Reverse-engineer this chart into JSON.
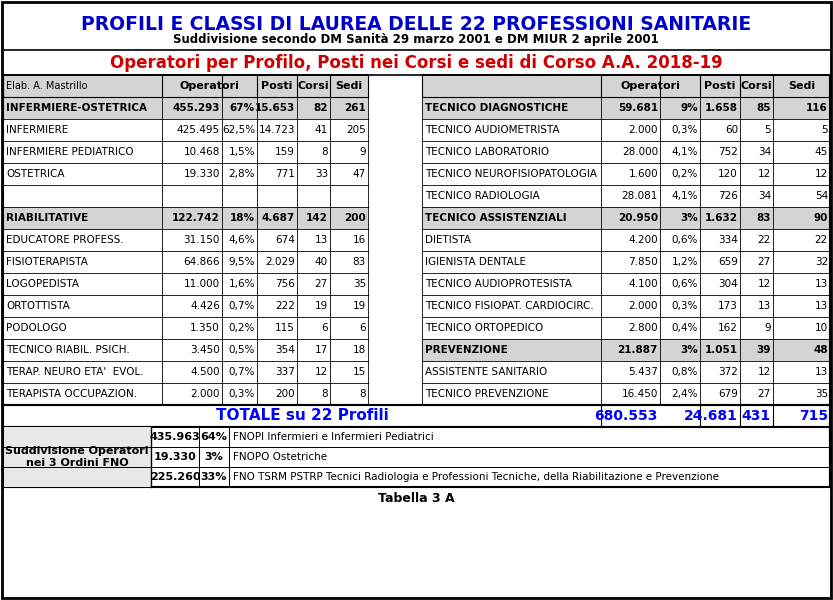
{
  "title1": "PROFILI E CLASSI DI LAUREA DELLE 22 PROFESSIONI SANITARIE",
  "title2": "Suddivisione secondo DM Sanità 29 marzo 2001 e DM MIUR 2 aprile 2001",
  "title3": "Operatori per Profilo, Posti nei Corsi e sedi di Corso A.A. 2018-19",
  "elab": "Elab. A. Mastrillo",
  "left_sections": [
    {
      "name": "INFERMIERE-OSTETRICA",
      "bold": true,
      "operatori": "455.293",
      "pct": "67%",
      "posti": "15.653",
      "corsi": "82",
      "sedi": "261"
    },
    {
      "name": "INFERMIERE",
      "bold": false,
      "operatori": "425.495",
      "pct": "62,5%",
      "posti": "14.723",
      "corsi": "41",
      "sedi": "205"
    },
    {
      "name": "INFERMIERE PEDIATRICO",
      "bold": false,
      "operatori": "10.468",
      "pct": "1,5%",
      "posti": "159",
      "corsi": "8",
      "sedi": "9"
    },
    {
      "name": "OSTETRICA",
      "bold": false,
      "operatori": "19.330",
      "pct": "2,8%",
      "posti": "771",
      "corsi": "33",
      "sedi": "47"
    },
    {
      "name": "",
      "bold": false,
      "operatori": "",
      "pct": "",
      "posti": "",
      "corsi": "",
      "sedi": ""
    },
    {
      "name": "RIABILITATIVE",
      "bold": true,
      "operatori": "122.742",
      "pct": "18%",
      "posti": "4.687",
      "corsi": "142",
      "sedi": "200"
    },
    {
      "name": "EDUCATORE PROFESS.",
      "bold": false,
      "operatori": "31.150",
      "pct": "4,6%",
      "posti": "674",
      "corsi": "13",
      "sedi": "16"
    },
    {
      "name": "FISIOTERAPISTA",
      "bold": false,
      "operatori": "64.866",
      "pct": "9,5%",
      "posti": "2.029",
      "corsi": "40",
      "sedi": "83"
    },
    {
      "name": "LOGOPEDISTA",
      "bold": false,
      "operatori": "11.000",
      "pct": "1,6%",
      "posti": "756",
      "corsi": "27",
      "sedi": "35"
    },
    {
      "name": "ORTOTTISTA",
      "bold": false,
      "operatori": "4.426",
      "pct": "0,7%",
      "posti": "222",
      "corsi": "19",
      "sedi": "19"
    },
    {
      "name": "PODOLOGO",
      "bold": false,
      "operatori": "1.350",
      "pct": "0,2%",
      "posti": "115",
      "corsi": "6",
      "sedi": "6"
    },
    {
      "name": "TECNICO RIABIL. PSICH.",
      "bold": false,
      "operatori": "3.450",
      "pct": "0,5%",
      "posti": "354",
      "corsi": "17",
      "sedi": "18"
    },
    {
      "name": "TERAP. NEURO ETA'  EVOL.",
      "bold": false,
      "operatori": "4.500",
      "pct": "0,7%",
      "posti": "337",
      "corsi": "12",
      "sedi": "15"
    },
    {
      "name": "TERAPISTA OCCUPAZION.",
      "bold": false,
      "operatori": "2.000",
      "pct": "0,3%",
      "posti": "200",
      "corsi": "8",
      "sedi": "8"
    }
  ],
  "right_sections": [
    {
      "name": "TECNICO DIAGNOSTICHE",
      "bold": true,
      "operatori": "59.681",
      "pct": "9%",
      "posti": "1.658",
      "corsi": "85",
      "sedi": "116"
    },
    {
      "name": "TECNICO AUDIOMETRISTA",
      "bold": false,
      "operatori": "2.000",
      "pct": "0,3%",
      "posti": "60",
      "corsi": "5",
      "sedi": "5"
    },
    {
      "name": "TECNICO LABORATORIO",
      "bold": false,
      "operatori": "28.000",
      "pct": "4,1%",
      "posti": "752",
      "corsi": "34",
      "sedi": "45"
    },
    {
      "name": "TECNICO NEUROFISIOPATOLOGIA",
      "bold": false,
      "operatori": "1.600",
      "pct": "0,2%",
      "posti": "120",
      "corsi": "12",
      "sedi": "12"
    },
    {
      "name": "TECNICO RADIOLOGIA",
      "bold": false,
      "operatori": "28.081",
      "pct": "4,1%",
      "posti": "726",
      "corsi": "34",
      "sedi": "54"
    },
    {
      "name": "TECNICO ASSISTENZIALI",
      "bold": true,
      "operatori": "20.950",
      "pct": "3%",
      "posti": "1.632",
      "corsi": "83",
      "sedi": "90"
    },
    {
      "name": "DIETISTA",
      "bold": false,
      "operatori": "4.200",
      "pct": "0,6%",
      "posti": "334",
      "corsi": "22",
      "sedi": "22"
    },
    {
      "name": "IGIENISTA DENTALE",
      "bold": false,
      "operatori": "7.850",
      "pct": "1,2%",
      "posti": "659",
      "corsi": "27",
      "sedi": "32"
    },
    {
      "name": "TECNICO AUDIOPROTESISTA",
      "bold": false,
      "operatori": "4.100",
      "pct": "0,6%",
      "posti": "304",
      "corsi": "12",
      "sedi": "13"
    },
    {
      "name": "TECNICO FISIOPAT. CARDIOCIRC.",
      "bold": false,
      "operatori": "2.000",
      "pct": "0,3%",
      "posti": "173",
      "corsi": "13",
      "sedi": "13"
    },
    {
      "name": "TECNICO ORTOPEDICO",
      "bold": false,
      "operatori": "2.800",
      "pct": "0,4%",
      "posti": "162",
      "corsi": "9",
      "sedi": "10"
    },
    {
      "name": "PREVENZIONE",
      "bold": true,
      "operatori": "21.887",
      "pct": "3%",
      "posti": "1.051",
      "corsi": "39",
      "sedi": "48"
    },
    {
      "name": "ASSISTENTE SANITARIO",
      "bold": false,
      "operatori": "5.437",
      "pct": "0,8%",
      "posti": "372",
      "corsi": "12",
      "sedi": "13"
    },
    {
      "name": "TECNICO PREVENZIONE",
      "bold": false,
      "operatori": "16.450",
      "pct": "2,4%",
      "posti": "679",
      "corsi": "27",
      "sedi": "35"
    }
  ],
  "totale_row": {
    "label": "TOTALE su 22 Profili",
    "operatori": "680.553",
    "posti": "24.681",
    "corsi": "431",
    "sedi": "715"
  },
  "fno_rows": [
    {
      "val": "435.963",
      "pct": "64%",
      "desc": "FNOPI Infermieri e Infermieri Pediatrici"
    },
    {
      "val": "19.330",
      "pct": "3%",
      "desc": "FNOPO Ostetriche"
    },
    {
      "val": "225.260",
      "pct": "33%",
      "desc": "FNO TSRM PSTRP Tecnici Radiologia e Professioni Tecniche, della Riabilitazione e Prevenzione"
    }
  ],
  "fno_label": "Suddivisione Operatori\nnei 3 Ordini FNO",
  "table_label": "Tabella 3 A",
  "title1_color": "#0000cc",
  "title3_color": "#cc0000",
  "header_bg": "#d4d4d4",
  "bold_row_bg": "#d4d4d4",
  "fno_label_bg": "#e8e8e8"
}
